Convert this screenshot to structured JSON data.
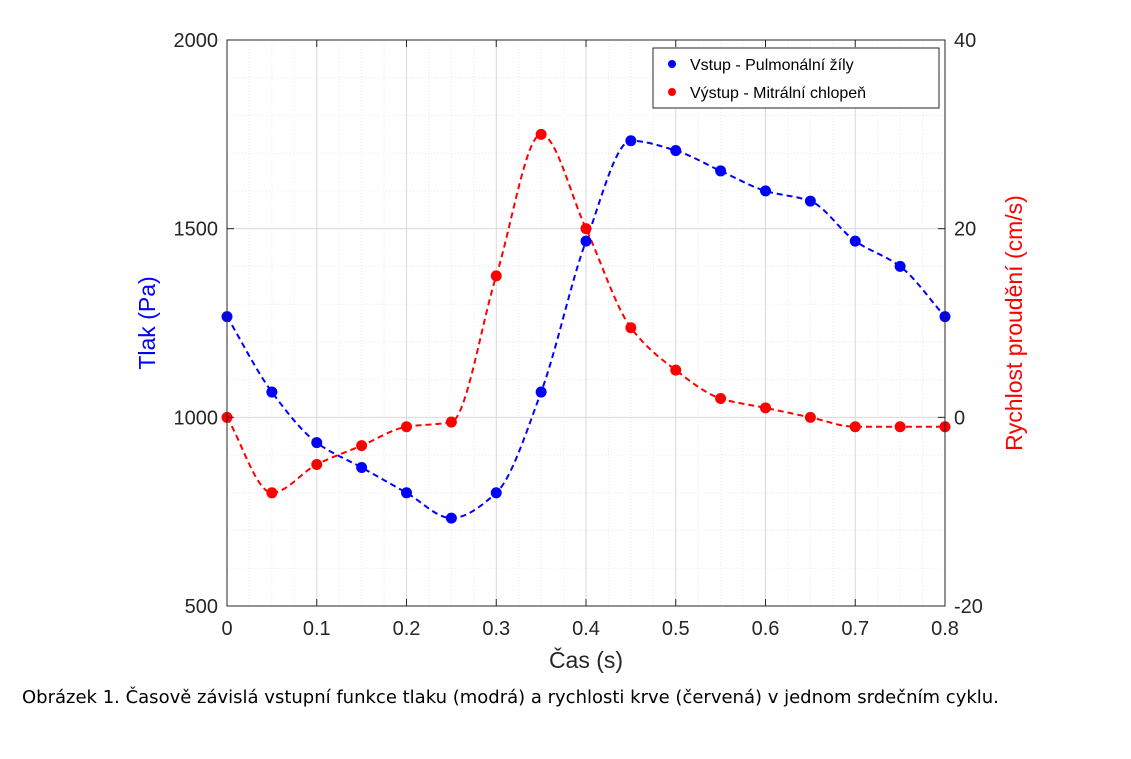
{
  "colors": {
    "pressure": "#0000ff",
    "velocity": "#ff0000",
    "axis": "#262626",
    "grid": "#d9d9d9"
  },
  "chart_data": {
    "type": "scatter",
    "xlabel": "Čas (s)",
    "ylabel_left": "Tlak (Pa)",
    "ylabel_right": "Rychlost proudění (cm/s)",
    "xlim": [
      0,
      0.8
    ],
    "ylim_left": [
      500,
      2000
    ],
    "ylim_right": [
      -20,
      40
    ],
    "x_ticks": [
      "0",
      "0.1",
      "0.2",
      "0.3",
      "0.4",
      "0.5",
      "0.6",
      "0.7",
      "0.8"
    ],
    "y_left_ticks": [
      "500",
      "1000",
      "1500",
      "2000"
    ],
    "y_right_ticks": [
      "-20",
      "0",
      "20",
      "40"
    ],
    "grid": true,
    "minor_grid": true,
    "legend_position": "top-right",
    "series": [
      {
        "name": "Vstup - Pulmonální žíly",
        "axis": "left",
        "color": "blue",
        "x": [
          0,
          0.05,
          0.1,
          0.15,
          0.2,
          0.25,
          0.3,
          0.35,
          0.4,
          0.45,
          0.5,
          0.55,
          0.6,
          0.65,
          0.7,
          0.75,
          0.8
        ],
        "y": [
          1267,
          1067,
          933,
          867,
          800,
          733,
          800,
          1067,
          1467,
          1733,
          1707,
          1653,
          1600,
          1573,
          1467,
          1400,
          1267
        ]
      },
      {
        "name": "Výstup - Mitrální chlopeň",
        "axis": "right",
        "color": "red",
        "x": [
          0,
          0.05,
          0.1,
          0.15,
          0.2,
          0.25,
          0.3,
          0.35,
          0.4,
          0.45,
          0.5,
          0.55,
          0.6,
          0.65,
          0.7,
          0.75,
          0.8
        ],
        "y": [
          0,
          -8,
          -5,
          -3,
          -1,
          -0.5,
          15,
          30,
          20,
          9.5,
          5,
          2,
          1,
          0,
          -1,
          -1,
          -1
        ]
      }
    ]
  },
  "caption": "Obrázek 1. Časově závislá vstupní funkce tlaku (modrá) a rychlosti krve (červená) v jednom srdečním cyklu."
}
